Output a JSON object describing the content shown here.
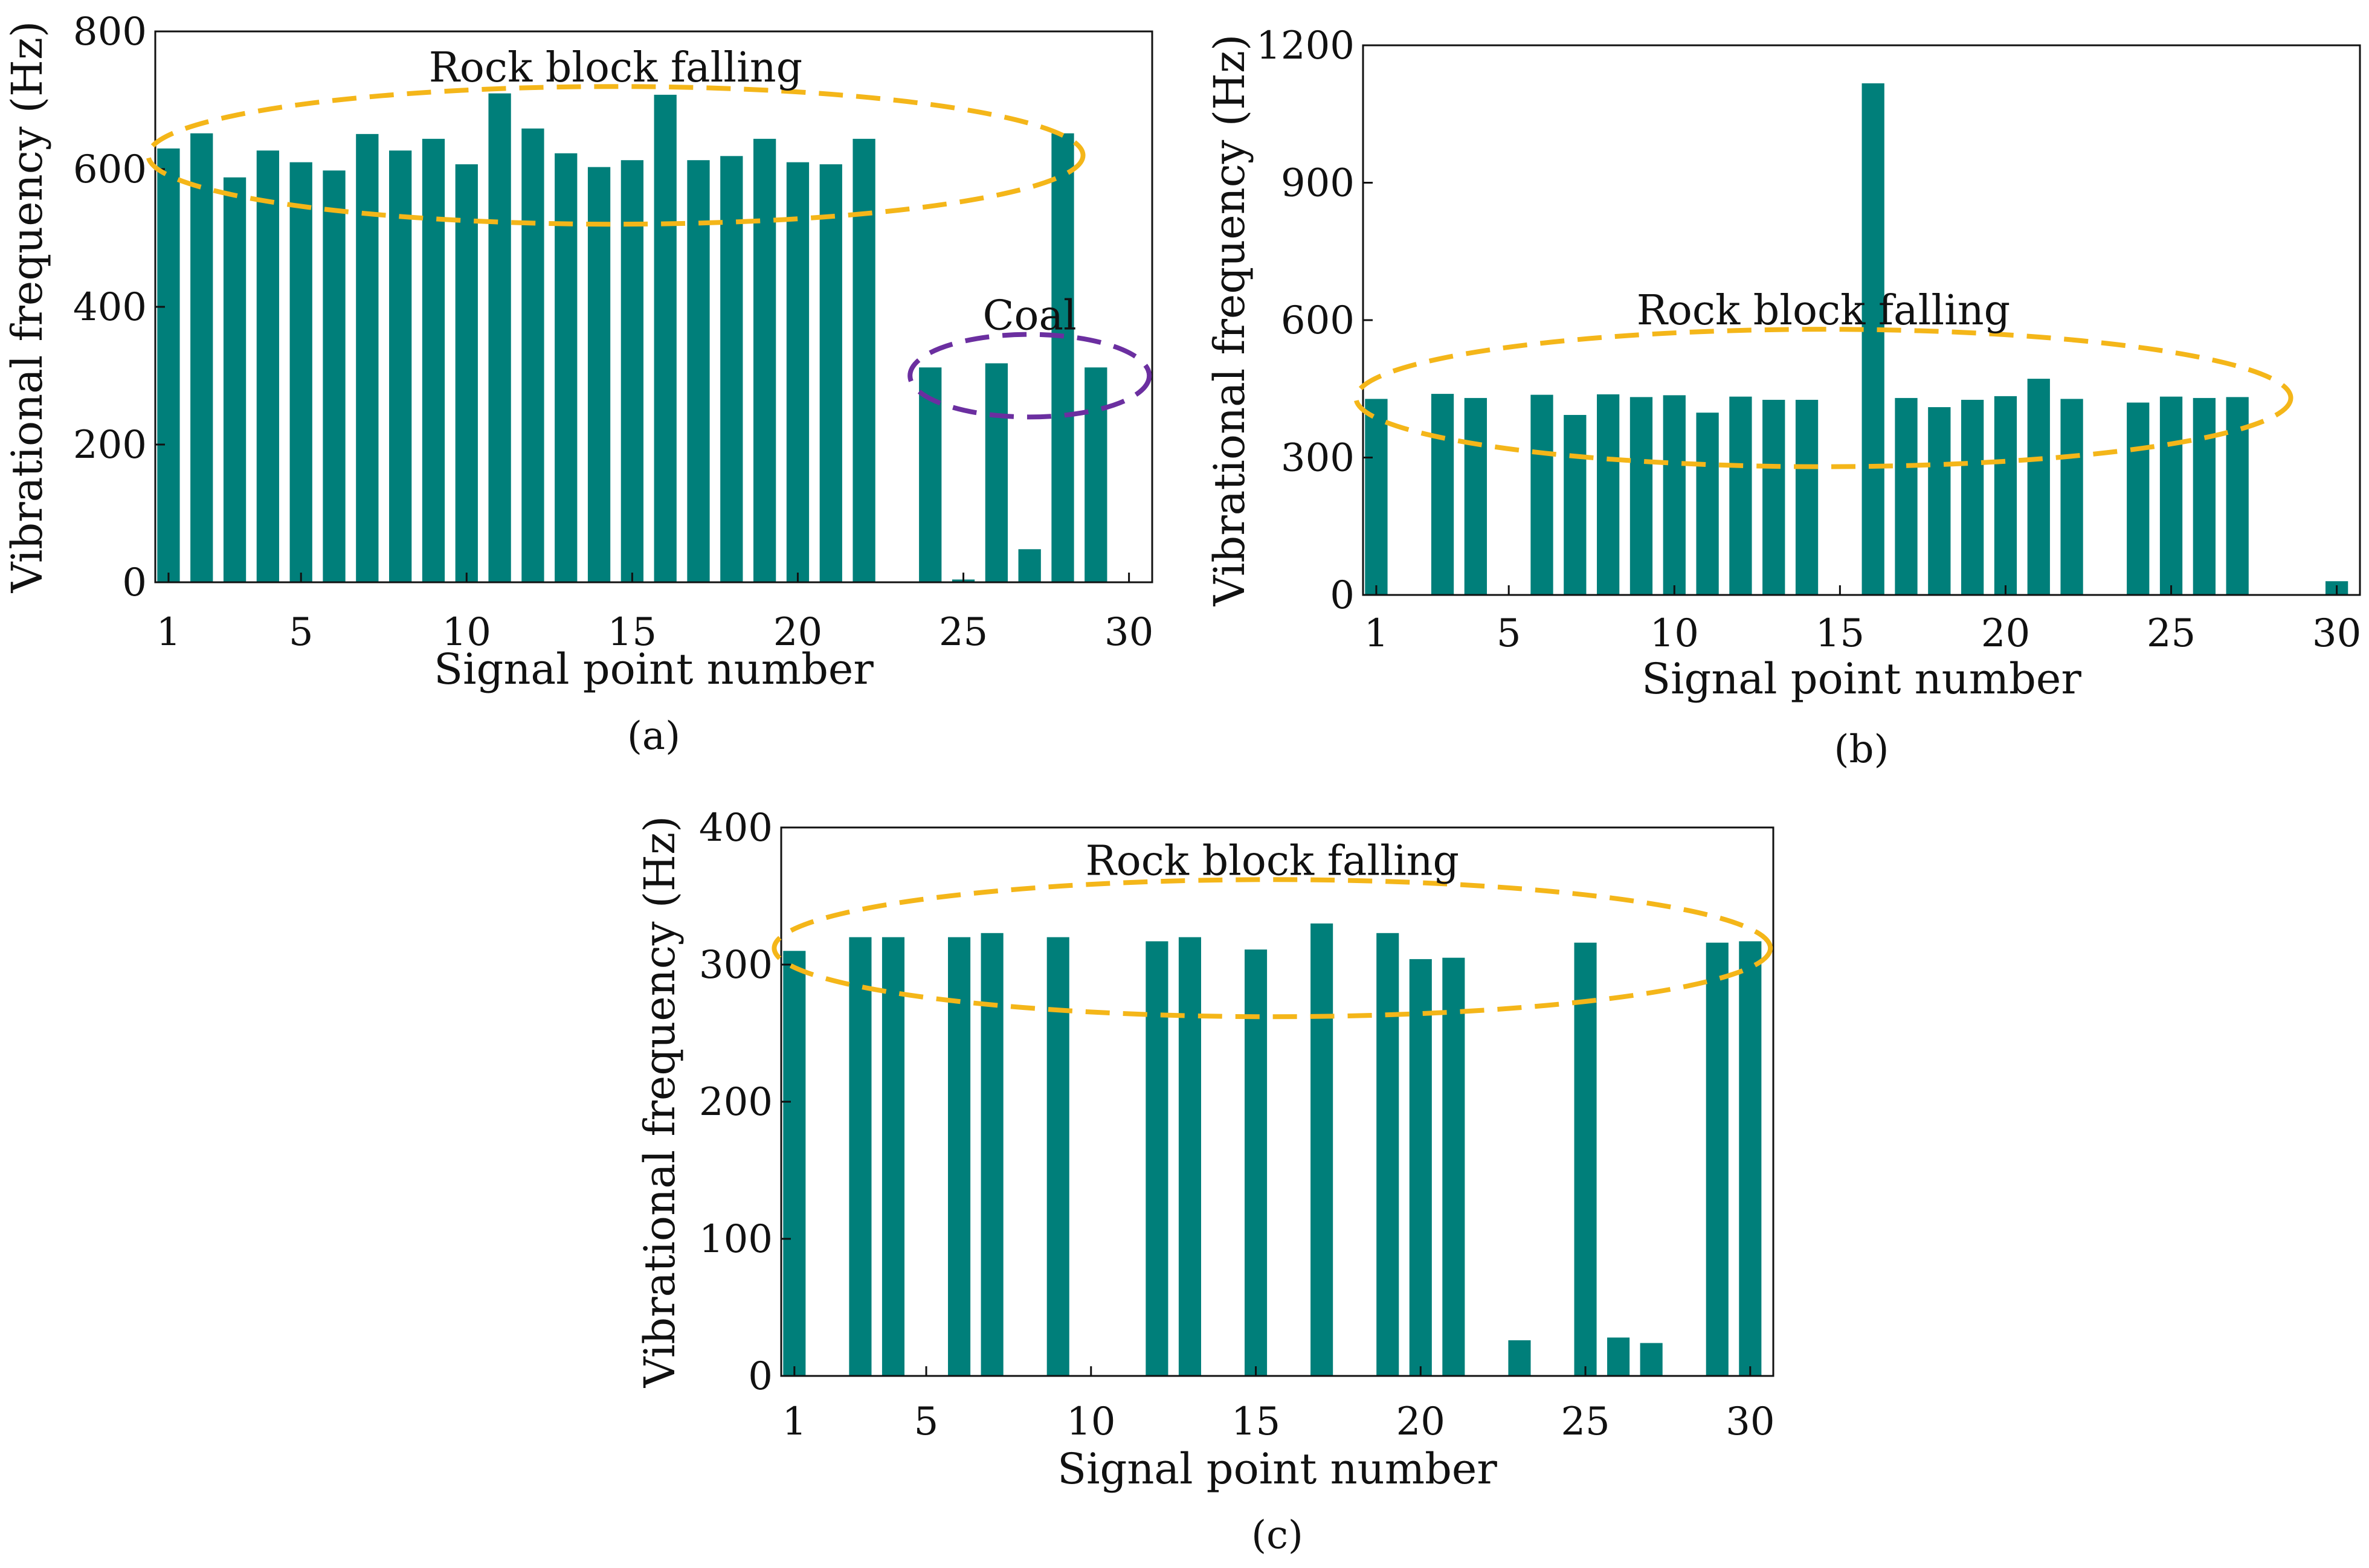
{
  "figure": {
    "bar_color": "#007f7a",
    "rock_ellipse_color": "#f4b619",
    "coal_ellipse_color": "#6b2fa0",
    "axis_color": "#111111"
  },
  "chart_data": [
    {
      "type": "bar",
      "panel_label": "(a)",
      "title": "",
      "xlabel": "Signal point number",
      "ylabel": "Vibrational frequency (Hz)",
      "x": [
        1,
        2,
        3,
        4,
        5,
        6,
        7,
        8,
        9,
        10,
        11,
        12,
        13,
        14,
        15,
        16,
        17,
        18,
        19,
        20,
        21,
        22,
        23,
        24,
        25,
        26,
        27,
        28,
        29,
        30
      ],
      "values": [
        630,
        652,
        588,
        627,
        610,
        598,
        651,
        627,
        644,
        607,
        710,
        659,
        623,
        603,
        613,
        708,
        613,
        619,
        644,
        610,
        607,
        644,
        0,
        312,
        4,
        318,
        48,
        652,
        312,
        0
      ],
      "xlim": [
        0.6,
        30.7
      ],
      "ylim": [
        0,
        800
      ],
      "xticks": [
        1,
        5,
        10,
        15,
        20,
        25,
        30
      ],
      "xtick_labels": [
        "1",
        "5",
        "10",
        "15",
        "20",
        "25",
        "30"
      ],
      "yticks": [
        0,
        200,
        400,
        600,
        800
      ],
      "ytick_labels": [
        "0",
        "200",
        "400",
        "600",
        "800"
      ],
      "annotations": [
        {
          "text": "Rock block falling",
          "group": "rock",
          "x_range": [
            1,
            28
          ],
          "y_range": [
            520,
            720
          ]
        },
        {
          "text": "Coal",
          "group": "coal",
          "x_range": [
            24,
            30
          ],
          "y_range": [
            240,
            360
          ]
        }
      ]
    },
    {
      "type": "bar",
      "panel_label": "(b)",
      "title": "",
      "xlabel": "Signal point number",
      "ylabel": "Vibrational frequency (Hz)",
      "x": [
        1,
        2,
        3,
        4,
        5,
        6,
        7,
        8,
        9,
        10,
        11,
        12,
        13,
        14,
        15,
        16,
        17,
        18,
        19,
        20,
        21,
        22,
        23,
        24,
        25,
        26,
        27,
        28,
        29,
        30
      ],
      "values": [
        428,
        0,
        439,
        430,
        0,
        437,
        393,
        438,
        432,
        436,
        398,
        433,
        426,
        426,
        0,
        1117,
        430,
        410,
        426,
        434,
        472,
        428,
        0,
        420,
        433,
        430,
        432,
        0,
        0,
        30
      ],
      "xlim": [
        0.6,
        30.7
      ],
      "ylim": [
        0,
        1200
      ],
      "xticks": [
        1,
        5,
        10,
        15,
        20,
        25,
        30
      ],
      "xtick_labels": [
        "1",
        "5",
        "10",
        "15",
        "20",
        "25",
        "30"
      ],
      "yticks": [
        0,
        300,
        600,
        900,
        1200
      ],
      "ytick_labels": [
        "0",
        "300",
        "600",
        "900",
        "1200"
      ],
      "annotations": [
        {
          "text": "Rock block falling",
          "group": "rock",
          "x_range": [
            1,
            28
          ],
          "y_range": [
            280,
            580
          ]
        }
      ]
    },
    {
      "type": "bar",
      "panel_label": "(c)",
      "title": "",
      "xlabel": "Signal point number",
      "ylabel": "Vibrational frequency (Hz)",
      "x": [
        1,
        2,
        3,
        4,
        5,
        6,
        7,
        8,
        9,
        10,
        11,
        12,
        13,
        14,
        15,
        16,
        17,
        18,
        19,
        20,
        21,
        22,
        23,
        24,
        25,
        26,
        27,
        28,
        29,
        30
      ],
      "values": [
        310,
        0,
        320,
        320,
        0,
        320,
        323,
        0,
        320,
        0,
        0,
        317,
        320,
        0,
        311,
        0,
        330,
        0,
        323,
        304,
        305,
        0,
        26,
        0,
        316,
        28,
        24,
        0,
        316,
        317
      ],
      "xlim": [
        0.6,
        30.7
      ],
      "ylim": [
        0,
        400
      ],
      "xticks": [
        1,
        5,
        10,
        15,
        20,
        25,
        30
      ],
      "xtick_labels": [
        "1",
        "5",
        "10",
        "15",
        "20",
        "25",
        "30"
      ],
      "yticks": [
        0,
        100,
        200,
        300,
        400
      ],
      "ytick_labels": [
        "0",
        "100",
        "200",
        "300",
        "400"
      ],
      "annotations": [
        {
          "text": "Rock block falling",
          "group": "rock",
          "x_range": [
            1,
            30
          ],
          "y_range": [
            262,
            362
          ]
        }
      ]
    }
  ]
}
